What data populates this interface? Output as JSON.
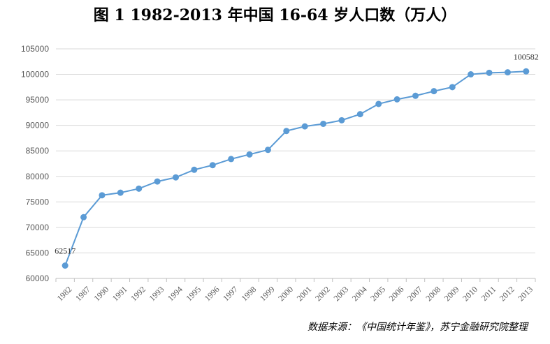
{
  "chart_data": {
    "type": "line",
    "title": "图 1    1982-2013 年中国 16-64 岁人口数（万人）",
    "xlabel": "",
    "ylabel": "",
    "ylim": [
      60000,
      105000
    ],
    "yticks": [
      60000,
      65000,
      70000,
      75000,
      80000,
      85000,
      90000,
      95000,
      100000,
      105000
    ],
    "grid": true,
    "legend": "none",
    "categories": [
      "1982",
      "1987",
      "1990",
      "1991",
      "1992",
      "1993",
      "1994",
      "1995",
      "1996",
      "1997",
      "1998",
      "1999",
      "2000",
      "2001",
      "2002",
      "2003",
      "2004",
      "2005",
      "2006",
      "2007",
      "2008",
      "2009",
      "2010",
      "2011",
      "2012",
      "2013"
    ],
    "series": [
      {
        "name": "16-64岁人口数",
        "color": "#5b9bd5",
        "values": [
          62517,
          72000,
          76300,
          76800,
          77600,
          79000,
          79800,
          81300,
          82200,
          83400,
          84300,
          85200,
          88900,
          89800,
          90300,
          91000,
          92200,
          94200,
          95100,
          95800,
          96700,
          97500,
          100000,
          100300,
          100400,
          100582
        ]
      }
    ],
    "annotations": [
      {
        "index": 0,
        "text": "62517"
      },
      {
        "index": 25,
        "text": "100582"
      }
    ]
  },
  "source_note": "数据来源：《中国统计年鉴》，苏宁金融研究院整理"
}
